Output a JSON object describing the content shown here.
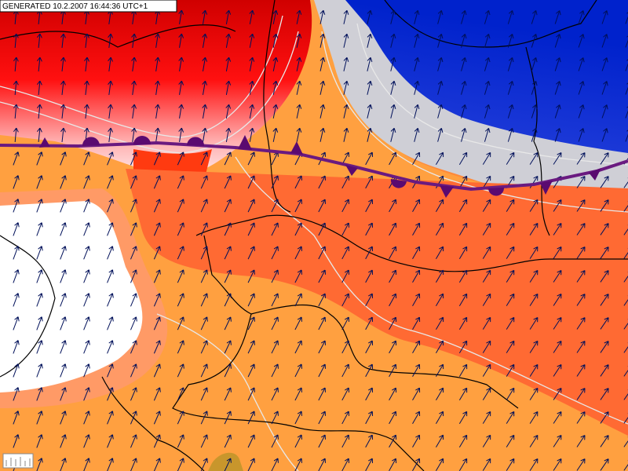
{
  "header": {
    "generated": "GENERATED 10.2.2007 16:44:36 UTC+1"
  }
}
